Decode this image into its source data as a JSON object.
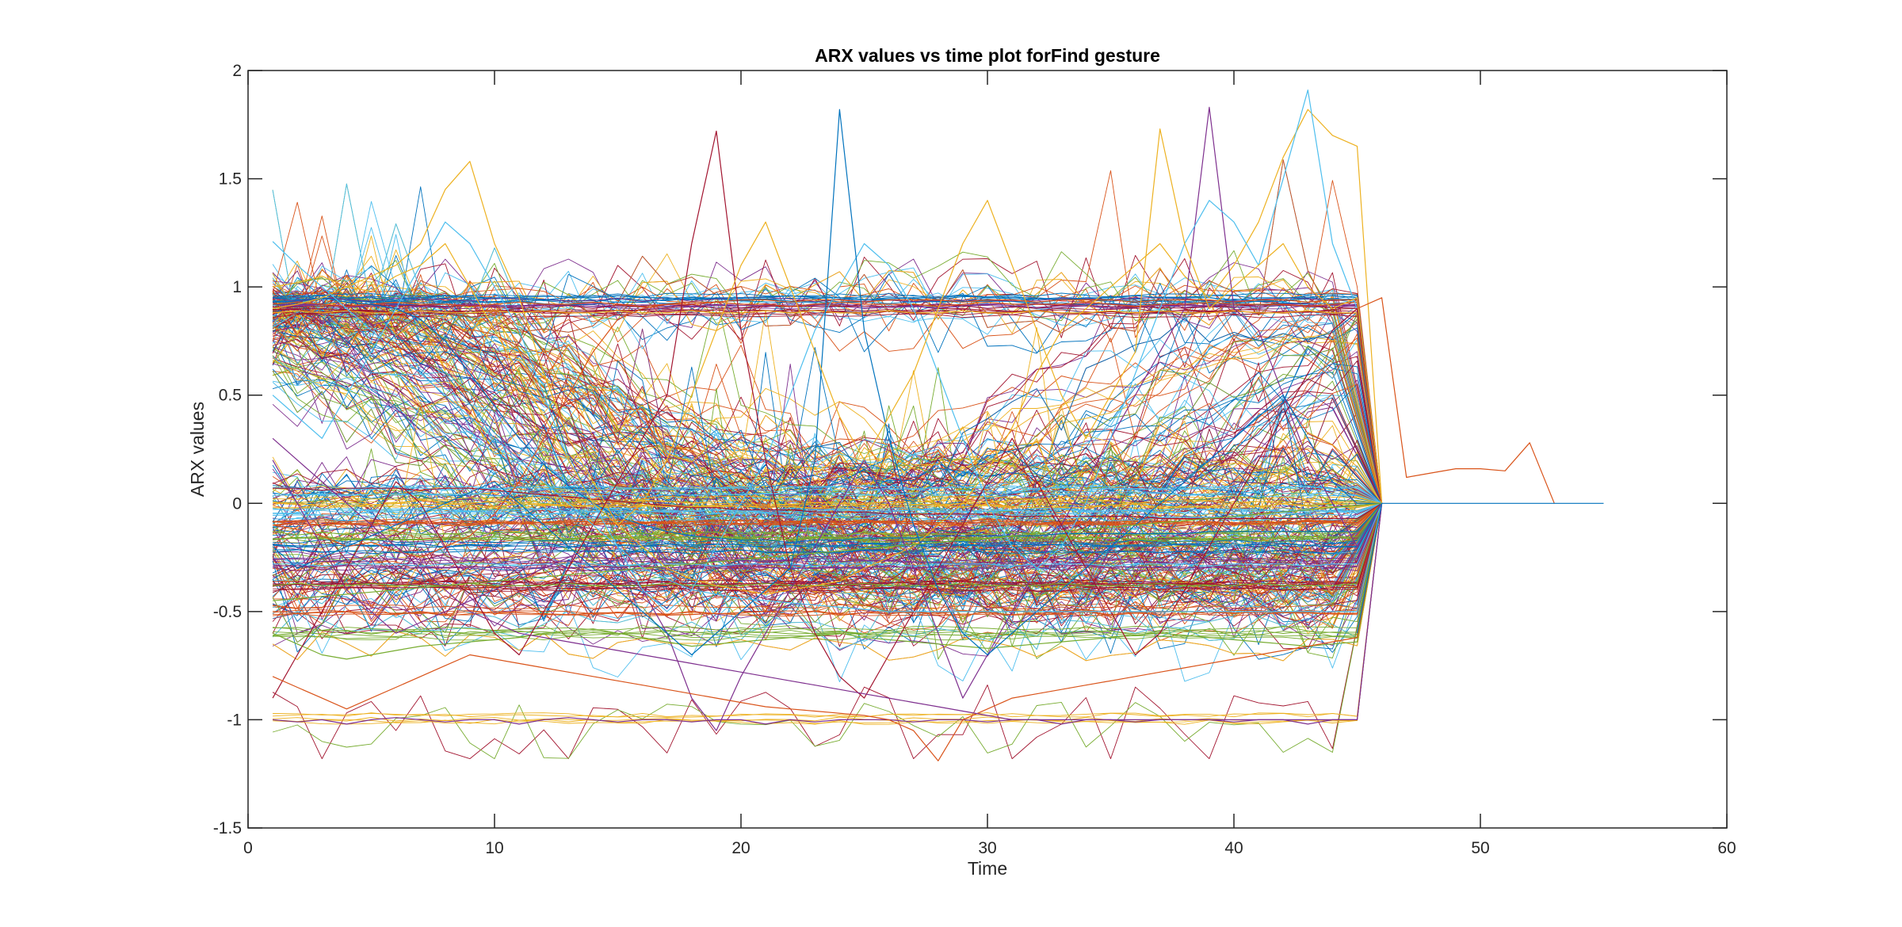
{
  "chart_data": {
    "type": "line",
    "title": "ARX values vs time plot forFind gesture",
    "xlabel": "Time",
    "ylabel": "ARX values",
    "xlim": [
      0,
      60
    ],
    "ylim": [
      -1.5,
      2
    ],
    "xticks": [
      0,
      10,
      20,
      30,
      40,
      50,
      60
    ],
    "yticks": [
      -1.5,
      -1,
      -0.5,
      0,
      0.5,
      1,
      1.5,
      2
    ],
    "grid": false,
    "legend": "none",
    "colors": [
      "#0072BD",
      "#D95319",
      "#EDB120",
      "#7E2F8E",
      "#77AC30",
      "#4DBEEE",
      "#A2142F"
    ],
    "series_count_estimate": 400,
    "x": [
      1,
      2,
      3,
      4,
      5,
      6,
      7,
      8,
      9,
      10,
      11,
      12,
      13,
      14,
      15,
      16,
      17,
      18,
      19,
      20,
      21,
      22,
      23,
      24,
      25,
      26,
      27,
      28,
      29,
      30,
      31,
      32,
      33,
      34,
      35,
      36,
      37,
      38,
      39,
      40,
      41,
      42,
      43,
      44,
      45,
      46
    ],
    "series": [
      {
        "values": [
          0.95,
          0.95,
          0.96,
          0.95,
          0.95,
          0.94,
          0.95,
          0.96,
          0.95,
          0.95,
          0.95,
          0.94,
          0.95,
          0.95,
          0.96,
          0.95,
          0.95,
          0.94,
          0.95,
          0.95,
          0.95,
          0.96,
          0.95,
          0.95,
          0.94,
          0.95,
          0.95,
          0.95,
          0.96,
          0.95,
          0.95,
          0.95,
          0.94,
          0.95,
          0.95,
          0.96,
          0.95,
          0.95,
          0.95,
          0.94,
          0.95,
          0.95,
          0.95,
          0.96,
          0.95,
          0
        ]
      },
      {
        "values": [
          0.92,
          0.93,
          0.92,
          0.91,
          0.92,
          0.93,
          0.92,
          0.92,
          0.91,
          0.92,
          0.93,
          0.92,
          0.92,
          0.93,
          0.92,
          0.91,
          0.92,
          0.92,
          0.93,
          0.92,
          0.92,
          0.91,
          0.92,
          0.93,
          0.92,
          0.92,
          0.92,
          0.91,
          0.92,
          0.93,
          0.92,
          0.92,
          0.92,
          0.93,
          0.92,
          0.91,
          0.92,
          0.92,
          0.93,
          0.92,
          0.92,
          0.92,
          0.91,
          0.92,
          0.93,
          0
        ]
      },
      {
        "values": [
          0.88,
          0.89,
          0.88,
          0.89,
          0.88,
          0.88,
          0.89,
          0.88,
          0.88,
          0.89,
          0.88,
          0.89,
          0.88,
          0.88,
          0.89,
          0.88,
          0.88,
          0.89,
          0.88,
          0.88,
          0.89,
          0.88,
          0.89,
          0.88,
          0.88,
          0.89,
          0.88,
          0.88,
          0.89,
          0.88,
          0.88,
          0.89,
          0.88,
          0.88,
          0.89,
          0.88,
          0.89,
          0.88,
          0.88,
          0.89,
          0.88,
          0.88,
          0.89,
          0.88,
          0.88,
          0
        ]
      },
      {
        "values": [
          -1.0,
          -1.01,
          -1.0,
          -1.02,
          -1.0,
          -0.99,
          -1.0,
          -1.01,
          -1.0,
          -1.0,
          -1.02,
          -1.0,
          -0.99,
          -1.0,
          -1.01,
          -1.0,
          -1.0,
          -1.01,
          -1.0,
          -1.0,
          -1.02,
          -1.0,
          -1.01,
          -1.0,
          -1.0,
          -1.0,
          -1.01,
          -1.0,
          -1.0,
          -1.01,
          -1.0,
          -1.0,
          -1.02,
          -1.0,
          -1.0,
          -1.01,
          -1.0,
          -1.0,
          -1.0,
          -1.01,
          -1.0,
          -1.0,
          -1.02,
          -1.0,
          -1.0,
          0
        ]
      },
      {
        "values": [
          -0.38,
          -0.37,
          -0.38,
          -0.38,
          -0.37,
          -0.38,
          -0.38,
          -0.38,
          -0.37,
          -0.38,
          -0.38,
          -0.38,
          -0.37,
          -0.38,
          -0.38,
          -0.38,
          -0.37,
          -0.38,
          -0.38,
          -0.38,
          -0.37,
          -0.38,
          -0.38,
          -0.38,
          -0.37,
          -0.38,
          -0.38,
          -0.38,
          -0.37,
          -0.38,
          -0.38,
          -0.38,
          -0.37,
          -0.38,
          -0.38,
          -0.38,
          -0.37,
          -0.38,
          -0.38,
          -0.38,
          -0.37,
          -0.38,
          -0.38,
          -0.38,
          -0.37,
          0
        ]
      },
      {
        "values": [
          -0.28,
          -0.28,
          -0.29,
          -0.28,
          -0.28,
          -0.28,
          -0.29,
          -0.28,
          -0.28,
          -0.28,
          -0.29,
          -0.28,
          -0.28,
          -0.28,
          -0.29,
          -0.28,
          -0.28,
          -0.28,
          -0.29,
          -0.28,
          -0.28,
          -0.28,
          -0.29,
          -0.28,
          -0.28,
          -0.28,
          -0.29,
          -0.28,
          -0.28,
          -0.28,
          -0.29,
          -0.28,
          -0.28,
          -0.28,
          -0.29,
          -0.28,
          -0.28,
          -0.28,
          -0.29,
          -0.28,
          -0.28,
          -0.28,
          -0.29,
          -0.28,
          -0.28,
          0
        ]
      },
      {
        "values": [
          0.07,
          0.07,
          0.06,
          0.07,
          0.07,
          0.07,
          0.06,
          0.07,
          0.07,
          0.06,
          0.05,
          0.04,
          0.03,
          0.02,
          0.01,
          0.0,
          -0.01,
          -0.02,
          -0.02,
          -0.03,
          -0.03,
          -0.03,
          -0.04,
          -0.04,
          -0.04,
          -0.05,
          -0.05,
          -0.05,
          -0.05,
          -0.05,
          -0.06,
          -0.06,
          -0.06,
          -0.06,
          -0.06,
          -0.06,
          -0.07,
          -0.07,
          -0.07,
          -0.07,
          -0.07,
          -0.07,
          -0.07,
          -0.07,
          -0.07,
          0
        ]
      },
      {
        "values": [
          0.95,
          0.94,
          0.95,
          0.93,
          0.92,
          0.9,
          0.85,
          0.75,
          0.6,
          0.45,
          0.3,
          0.18,
          0.08,
          0.0,
          -0.06,
          -0.1,
          -0.13,
          -0.15,
          -0.16,
          -0.17,
          -0.17,
          -0.18,
          -0.17,
          -0.17,
          -0.16,
          -0.16,
          -0.16,
          -0.15,
          -0.15,
          -0.15,
          -0.15,
          -0.15,
          -0.14,
          -0.14,
          -0.14,
          -0.14,
          -0.14,
          -0.14,
          -0.13,
          -0.13,
          -0.13,
          -0.13,
          -0.13,
          -0.13,
          -0.13,
          0
        ]
      },
      {
        "values": [
          -0.1,
          -0.12,
          -0.15,
          -0.2,
          -0.18,
          -0.22,
          -0.25,
          -0.2,
          -0.15,
          -0.05,
          0.1,
          0.3,
          0.5,
          0.7,
          0.85,
          0.9,
          0.92,
          0.93,
          0.93,
          0.94,
          0.94,
          0.93,
          0.94,
          0.94,
          0.93,
          0.94,
          0.94,
          0.94,
          0.93,
          0.94,
          0.94,
          0.93,
          0.94,
          0.94,
          0.94,
          0.93,
          0.94,
          0.94,
          0.94,
          0.93,
          0.94,
          0.94,
          0.93,
          0.94,
          0.94,
          0
        ]
      },
      {
        "values": [
          0.9,
          0.92,
          0.95,
          1.0,
          1.05,
          1.1,
          1.2,
          1.45,
          1.58,
          1.2,
          0.95,
          0.6,
          0.3,
          0.1,
          -0.1,
          -0.2,
          -0.3,
          -0.35,
          -0.38,
          -0.4,
          -0.42,
          -0.4,
          -0.38,
          -0.36,
          -0.3,
          -0.25,
          -0.2,
          -0.1,
          0.0,
          0.15,
          0.35,
          0.6,
          0.8,
          0.9,
          1.0,
          1.1,
          1.2,
          1.05,
          0.95,
          1.1,
          1.3,
          1.6,
          1.82,
          1.7,
          1.65,
          0
        ]
      },
      {
        "values": [
          0.2,
          0.0,
          -0.2,
          -0.4,
          -0.5,
          -0.6,
          -0.55,
          -0.5,
          -0.45,
          -0.4,
          -0.35,
          -0.3,
          -0.25,
          -0.2,
          -0.3,
          -0.4,
          -0.6,
          -0.9,
          -1.05,
          -0.8,
          -0.6,
          -0.4,
          -0.2,
          0.0,
          0.2,
          0.0,
          -0.3,
          -0.6,
          -0.9,
          -0.7,
          -0.5,
          -0.3,
          -0.1,
          0.1,
          0.3,
          0.5,
          0.7,
          0.9,
          1.83,
          0.9,
          0.8,
          0.5,
          0.2,
          0.0,
          -0.2,
          0
        ]
      },
      {
        "values": [
          -0.6,
          -0.65,
          -0.7,
          -0.72,
          -0.7,
          -0.68,
          -0.66,
          -0.65,
          -0.64,
          -0.63,
          -0.62,
          -0.6,
          -0.59,
          -0.58,
          -0.6,
          -0.62,
          -0.64,
          -0.66,
          -0.65,
          -0.64,
          -0.63,
          -0.62,
          -0.61,
          -0.6,
          -0.62,
          -0.63,
          -0.64,
          -0.65,
          -0.66,
          -0.67,
          -0.66,
          -0.65,
          -0.64,
          -0.63,
          -0.62,
          -0.61,
          -0.6,
          -0.61,
          -0.62,
          -0.63,
          -0.64,
          -0.65,
          -0.66,
          -0.65,
          -0.64,
          0
        ]
      },
      {
        "values": [
          0.5,
          0.4,
          0.3,
          0.5,
          0.7,
          0.9,
          1.1,
          1.3,
          1.2,
          1.0,
          0.8,
          0.5,
          0.2,
          0.0,
          -0.2,
          -0.4,
          -0.5,
          -0.4,
          -0.2,
          0.0,
          0.2,
          0.5,
          0.8,
          1.0,
          1.2,
          1.1,
          0.9,
          0.6,
          0.3,
          0.0,
          -0.2,
          -0.3,
          -0.2,
          0.0,
          0.3,
          0.6,
          0.9,
          1.2,
          1.4,
          1.3,
          1.1,
          1.5,
          1.91,
          1.2,
          0.9,
          0
        ]
      },
      {
        "values": [
          -0.9,
          -0.7,
          -0.5,
          -0.3,
          -0.1,
          0.1,
          0.0,
          -0.2,
          -0.4,
          -0.6,
          -0.7,
          -0.5,
          -0.3,
          -0.1,
          0.1,
          0.3,
          0.5,
          1.2,
          1.72,
          0.8,
          0.2,
          -0.3,
          -0.6,
          -0.8,
          -0.9,
          -0.7,
          -0.5,
          -0.3,
          -0.1,
          0.1,
          0.3,
          0.1,
          -0.1,
          -0.3,
          -0.5,
          -0.7,
          -0.6,
          -0.4,
          -0.2,
          0.0,
          0.2,
          0.4,
          0.6,
          0.8,
          0.9,
          0
        ]
      },
      {
        "values": [
          -0.2,
          -0.3,
          -0.25,
          -0.2,
          -0.15,
          -0.1,
          -0.05,
          0.0,
          0.05,
          0.1,
          0.0,
          -0.1,
          -0.2,
          -0.3,
          -0.4,
          -0.5,
          -0.6,
          -0.7,
          -0.6,
          -0.5,
          -0.4,
          -0.3,
          0.2,
          1.82,
          0.8,
          0.3,
          -0.1,
          -0.4,
          -0.6,
          -0.7,
          -0.6,
          -0.5,
          -0.4,
          -0.3,
          -0.2,
          -0.1,
          0.0,
          0.1,
          0.2,
          0.3,
          0.4,
          0.5,
          0.3,
          0.1,
          0.0,
          0
        ]
      },
      {
        "values": [
          -0.8,
          -0.85,
          -0.9,
          -0.95,
          -0.9,
          -0.85,
          -0.8,
          -0.75,
          -0.7,
          -0.72,
          -0.74,
          -0.76,
          -0.78,
          -0.8,
          -0.82,
          -0.84,
          -0.86,
          -0.88,
          -0.9,
          -0.92,
          -0.94,
          -0.95,
          -0.96,
          -0.97,
          -0.98,
          -1.0,
          -1.05,
          -1.19,
          -1.0,
          -0.95,
          -0.9,
          -0.88,
          -0.86,
          -0.84,
          -0.82,
          -0.8,
          -0.78,
          -0.76,
          -0.74,
          -0.72,
          -0.7,
          -0.68,
          -0.66,
          -0.64,
          -0.62,
          0
        ]
      },
      {
        "values": [
          1.0,
          1.02,
          1.05,
          1.0,
          0.98,
          1.05,
          1.1,
          1.2,
          1.0,
          0.8,
          0.6,
          0.4,
          0.2,
          0.0,
          -0.1,
          0.0,
          0.2,
          0.5,
          0.8,
          1.1,
          1.3,
          1.0,
          0.7,
          0.4,
          0.2,
          0.4,
          0.6,
          0.9,
          1.2,
          1.4,
          1.1,
          0.8,
          0.5,
          0.3,
          0.5,
          0.7,
          1.73,
          1.2,
          0.9,
          1.0,
          1.1,
          1.2,
          1.0,
          0.9,
          0.95,
          0
        ]
      },
      {
        "values": [
          0.3,
          0.2,
          0.1,
          0.0,
          -0.1,
          -0.2,
          -0.3,
          -0.4,
          -0.5,
          -0.55,
          -0.6,
          -0.62,
          -0.64,
          -0.66,
          -0.68,
          -0.7,
          -0.72,
          -0.74,
          -0.76,
          -0.78,
          -0.8,
          -0.82,
          -0.84,
          -0.86,
          -0.88,
          -0.9,
          -0.92,
          -0.94,
          -0.96,
          -0.98,
          -1.0,
          -1.0,
          -1.0,
          -1.0,
          -1.0,
          -1.0,
          -1.0,
          -1.0,
          -1.0,
          -1.0,
          -1.0,
          -1.0,
          -1.0,
          -1.0,
          -1.0,
          0
        ]
      },
      {
        "values": [
          -0.45,
          -0.44,
          -0.43,
          -0.42,
          -0.41,
          -0.4,
          -0.39,
          -0.38,
          -0.37,
          -0.36,
          -0.35,
          -0.34,
          -0.33,
          -0.32,
          -0.31,
          -0.3,
          -0.29,
          -0.28,
          -0.27,
          -0.26,
          -0.25,
          -0.24,
          -0.23,
          -0.22,
          -0.21,
          -0.2,
          -0.19,
          -0.18,
          -0.17,
          -0.16,
          -0.15,
          -0.14,
          -0.13,
          -0.12,
          -0.11,
          -0.1,
          -0.09,
          -0.08,
          -0.07,
          -0.06,
          -0.05,
          -0.04,
          -0.03,
          -0.02,
          -0.01,
          0
        ]
      },
      {
        "values": [
          1.21,
          1.1,
          1.0,
          0.9,
          0.8,
          0.7,
          0.6,
          0.5,
          0.4,
          0.3,
          0.2,
          0.1,
          0.0,
          -0.1,
          -0.2,
          -0.3,
          -0.35,
          -0.4,
          -0.42,
          -0.44,
          -0.45,
          -0.46,
          -0.47,
          -0.48,
          -0.49,
          -0.5,
          -0.5,
          -0.5,
          -0.5,
          -0.5,
          -0.5,
          -0.5,
          -0.5,
          -0.5,
          -0.5,
          -0.5,
          -0.5,
          -0.5,
          -0.5,
          -0.5,
          -0.5,
          -0.5,
          -0.5,
          -0.5,
          -0.5,
          0
        ]
      }
    ],
    "tail_series": [
      {
        "x": [
          45,
          46,
          47,
          48,
          49,
          50,
          51,
          52,
          53
        ],
        "values": [
          0.9,
          0.95,
          0.12,
          0.14,
          0.16,
          0.16,
          0.15,
          0.28,
          0.0
        ]
      },
      {
        "x": [
          45,
          46,
          47,
          48,
          49,
          50,
          51,
          52,
          53,
          54,
          55
        ],
        "values": [
          -0.6,
          0.0,
          0.0,
          0.0,
          0.0,
          0.0,
          0.0,
          0.0,
          0.0,
          0.0,
          0.0
        ]
      }
    ]
  }
}
